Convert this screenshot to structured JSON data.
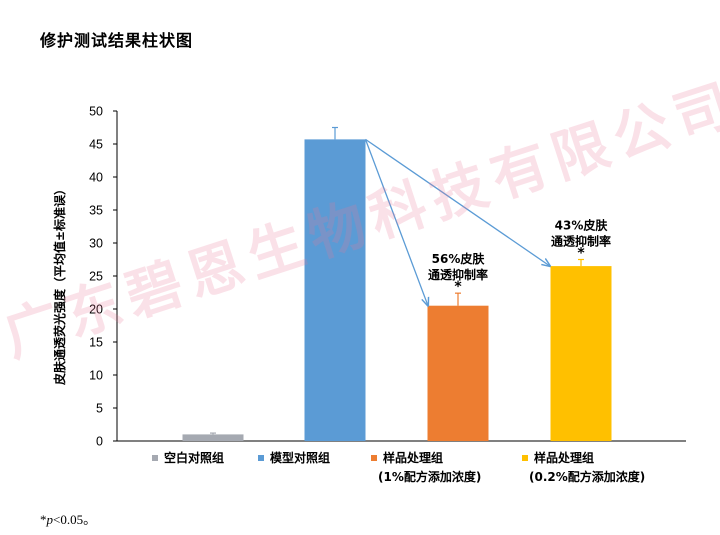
{
  "page": {
    "title": "修护测试结果柱状图",
    "watermark": "广东碧恩生物科技有限公司",
    "footnote": {
      "star": "*",
      "p": "p",
      "rest": "<0.05。"
    }
  },
  "chart_data": {
    "type": "bar",
    "ylabel": "皮肤通透荧光强度（平均值±标准误）",
    "xlabel": "",
    "ylim": [
      0,
      50
    ],
    "yticks": [
      0,
      5,
      10,
      15,
      20,
      25,
      30,
      35,
      40,
      45,
      50
    ],
    "grid": false,
    "legend_position": "bottom",
    "categories": [
      "空白对照组",
      "模型对照组",
      "样品处理组（1%配方添加浓度）",
      "样品处理组（0.2%配方添加浓度）"
    ],
    "values": [
      1.0,
      45.7,
      20.5,
      26.5
    ],
    "errors": [
      0.2,
      1.8,
      1.9,
      1.0
    ],
    "colors": [
      "#a5a9b1",
      "#5b9bd5",
      "#ed7d31",
      "#ffc000"
    ],
    "legend": [
      {
        "line1": "空白对照组",
        "line2": ""
      },
      {
        "line1": "模型对照组",
        "line2": ""
      },
      {
        "line1": "样品处理组",
        "line2": "(1%配方添加浓度)"
      },
      {
        "line1": "样品处理组",
        "line2": "(0.2%配方添加浓度)"
      }
    ],
    "annotations": [
      {
        "bar": 2,
        "line1": "56%皮肤",
        "line2": "通透抑制率",
        "star": "*"
      },
      {
        "bar": 3,
        "line1": "43%皮肤",
        "line2": "通透抑制率",
        "star": "*"
      }
    ],
    "arrows": [
      {
        "from": 1,
        "to": 2
      },
      {
        "from": 1,
        "to": 3
      }
    ],
    "arrow_color": "#5b9bd5"
  }
}
